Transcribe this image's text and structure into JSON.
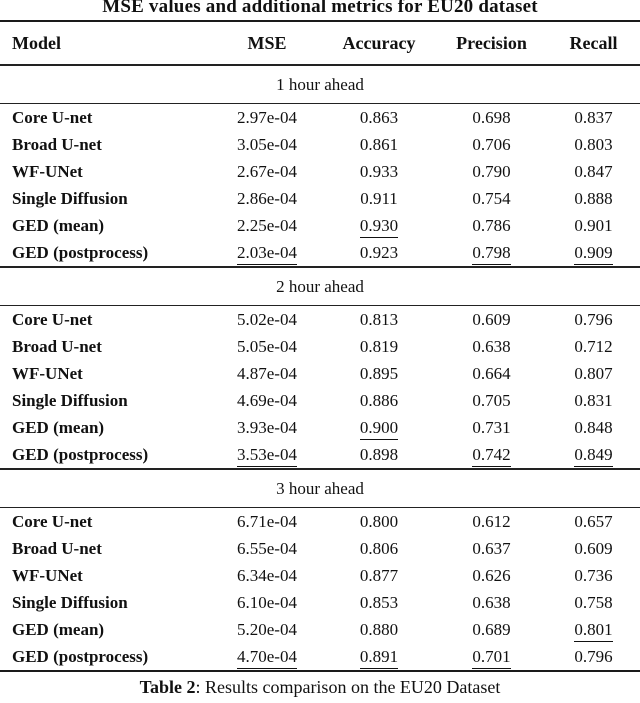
{
  "title": "MSE values and additional metrics for EU20 dataset",
  "columns": [
    "Model",
    "MSE",
    "Accuracy",
    "Precision",
    "Recall"
  ],
  "sections": [
    {
      "label": "1 hour ahead",
      "rows": [
        {
          "model": "Core U-net",
          "mse": "2.97e-04",
          "accuracy": "0.863",
          "precision": "0.698",
          "recall": "0.837",
          "u": []
        },
        {
          "model": "Broad U-net",
          "mse": "3.05e-04",
          "accuracy": "0.861",
          "precision": "0.706",
          "recall": "0.803",
          "u": []
        },
        {
          "model": "WF-UNet",
          "mse": "2.67e-04",
          "accuracy": "0.933",
          "precision": "0.790",
          "recall": "0.847",
          "u": []
        },
        {
          "model": "Single Diffusion",
          "mse": "2.86e-04",
          "accuracy": "0.911",
          "precision": "0.754",
          "recall": "0.888",
          "u": []
        },
        {
          "model": "GED (mean)",
          "mse": "2.25e-04",
          "accuracy": "0.930",
          "precision": "0.786",
          "recall": "0.901",
          "u": [
            "accuracy"
          ]
        },
        {
          "model": "GED (postprocess)",
          "mse": "2.03e-04",
          "accuracy": "0.923",
          "precision": "0.798",
          "recall": "0.909",
          "u": [
            "mse",
            "precision",
            "recall"
          ]
        }
      ]
    },
    {
      "label": "2 hour ahead",
      "rows": [
        {
          "model": "Core U-net",
          "mse": "5.02e-04",
          "accuracy": "0.813",
          "precision": "0.609",
          "recall": "0.796",
          "u": []
        },
        {
          "model": "Broad U-net",
          "mse": "5.05e-04",
          "accuracy": "0.819",
          "precision": "0.638",
          "recall": "0.712",
          "u": []
        },
        {
          "model": "WF-UNet",
          "mse": "4.87e-04",
          "accuracy": "0.895",
          "precision": "0.664",
          "recall": "0.807",
          "u": []
        },
        {
          "model": "Single Diffusion",
          "mse": "4.69e-04",
          "accuracy": "0.886",
          "precision": "0.705",
          "recall": "0.831",
          "u": []
        },
        {
          "model": "GED (mean)",
          "mse": "3.93e-04",
          "accuracy": "0.900",
          "precision": "0.731",
          "recall": "0.848",
          "u": [
            "accuracy"
          ]
        },
        {
          "model": "GED (postprocess)",
          "mse": "3.53e-04",
          "accuracy": "0.898",
          "precision": "0.742",
          "recall": "0.849",
          "u": [
            "mse",
            "precision",
            "recall"
          ]
        }
      ]
    },
    {
      "label": "3 hour ahead",
      "rows": [
        {
          "model": "Core U-net",
          "mse": "6.71e-04",
          "accuracy": "0.800",
          "precision": "0.612",
          "recall": "0.657",
          "u": []
        },
        {
          "model": "Broad U-net",
          "mse": "6.55e-04",
          "accuracy": "0.806",
          "precision": "0.637",
          "recall": "0.609",
          "u": []
        },
        {
          "model": "WF-UNet",
          "mse": "6.34e-04",
          "accuracy": "0.877",
          "precision": "0.626",
          "recall": "0.736",
          "u": []
        },
        {
          "model": "Single Diffusion",
          "mse": "6.10e-04",
          "accuracy": "0.853",
          "precision": "0.638",
          "recall": "0.758",
          "u": []
        },
        {
          "model": "GED (mean)",
          "mse": "5.20e-04",
          "accuracy": "0.880",
          "precision": "0.689",
          "recall": "0.801",
          "u": [
            "recall"
          ]
        },
        {
          "model": "GED (postprocess)",
          "mse": "4.70e-04",
          "accuracy": "0.891",
          "precision": "0.701",
          "recall": "0.796",
          "u": [
            "mse",
            "accuracy",
            "precision"
          ]
        }
      ]
    }
  ],
  "caption": {
    "label": "Table 2",
    "text": ": Results comparison on the EU20 Dataset"
  },
  "colors": {
    "text": "#111111",
    "rule": "#222222",
    "background": "#ffffff"
  }
}
